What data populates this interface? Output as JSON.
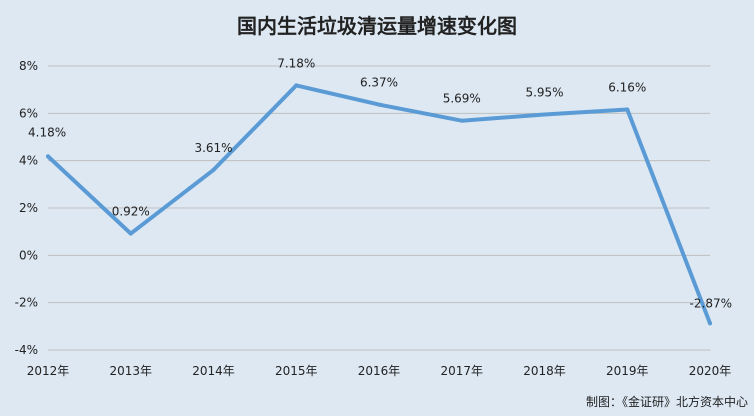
{
  "chart_data": {
    "type": "line",
    "title": "国内生活垃圾清运量增速变化图",
    "categories": [
      "2012年",
      "2013年",
      "2014年",
      "2015年",
      "2016年",
      "2017年",
      "2018年",
      "2019年",
      "2020年"
    ],
    "series": [
      {
        "values": [
          4.18,
          0.92,
          3.61,
          7.18,
          6.37,
          5.69,
          5.95,
          6.16,
          -2.87
        ]
      }
    ],
    "data_labels": [
      "4.18%",
      "0.92%",
      "3.61%",
      "7.18%",
      "6.37%",
      "5.69%",
      "5.95%",
      "6.16%",
      "-2.87%"
    ],
    "y_ticks": [
      8,
      6,
      4,
      2,
      0,
      -2,
      -4
    ],
    "y_tick_labels": [
      "8%",
      "6%",
      "4%",
      "2%",
      "0%",
      "-2%",
      "-4%"
    ],
    "ylim": [
      -4,
      8
    ],
    "grid": true,
    "legend": "none",
    "line_color": "#5b9bd5",
    "grid_color": "#bfbfbf",
    "source": "制图：《金证研》北方资本中心"
  }
}
